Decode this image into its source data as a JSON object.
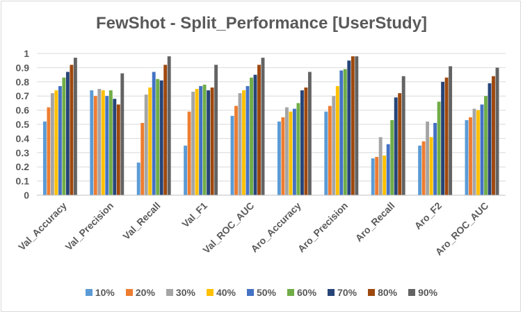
{
  "chart_data": {
    "type": "bar",
    "title": "FewShot - Split_Performance [UserStudy]",
    "xlabel": "",
    "ylabel": "",
    "ylim": [
      0,
      1
    ],
    "yticks": [
      "0",
      "0.1",
      "0.2",
      "0.3",
      "0.4",
      "0.5",
      "0.6",
      "0.7",
      "0.8",
      "0.9",
      "1"
    ],
    "grid": true,
    "legend_position": "bottom",
    "categories": [
      "Val_Accuracy",
      "Val_Precision",
      "Val_Recall",
      "Val_F1",
      "Val_ROC_AUC",
      "Aro_Accuracy",
      "Aro_Precision",
      "Aro_Recall",
      "Aro_F2",
      "Aro_ROC_AUC"
    ],
    "series": [
      {
        "name": "10%",
        "color": "#5B9BD5",
        "values": [
          0.52,
          0.74,
          0.23,
          0.35,
          0.56,
          0.52,
          0.59,
          0.26,
          0.35,
          0.53
        ]
      },
      {
        "name": "20%",
        "color": "#ED7D31",
        "values": [
          0.62,
          0.7,
          0.51,
          0.59,
          0.63,
          0.55,
          0.63,
          0.27,
          0.38,
          0.55
        ]
      },
      {
        "name": "30%",
        "color": "#A5A5A5",
        "values": [
          0.72,
          0.75,
          0.71,
          0.73,
          0.72,
          0.62,
          0.7,
          0.41,
          0.52,
          0.61
        ]
      },
      {
        "name": "40%",
        "color": "#FFC000",
        "values": [
          0.74,
          0.74,
          0.76,
          0.75,
          0.74,
          0.59,
          0.77,
          0.28,
          0.41,
          0.6
        ]
      },
      {
        "name": "50%",
        "color": "#4472C4",
        "values": [
          0.77,
          0.7,
          0.87,
          0.77,
          0.77,
          0.61,
          0.88,
          0.36,
          0.51,
          0.64
        ]
      },
      {
        "name": "60%",
        "color": "#70AD47",
        "values": [
          0.83,
          0.74,
          0.82,
          0.78,
          0.83,
          0.65,
          0.89,
          0.53,
          0.66,
          0.7
        ]
      },
      {
        "name": "70%",
        "color": "#264478",
        "values": [
          0.87,
          0.68,
          0.81,
          0.74,
          0.85,
          0.74,
          0.95,
          0.69,
          0.8,
          0.79
        ]
      },
      {
        "name": "80%",
        "color": "#9E480E",
        "values": [
          0.92,
          0.64,
          0.92,
          0.76,
          0.92,
          0.76,
          0.98,
          0.72,
          0.83,
          0.84
        ]
      },
      {
        "name": "90%",
        "color": "#636363",
        "values": [
          0.97,
          0.86,
          0.98,
          0.92,
          0.97,
          0.87,
          0.98,
          0.84,
          0.91,
          0.9
        ]
      }
    ]
  }
}
